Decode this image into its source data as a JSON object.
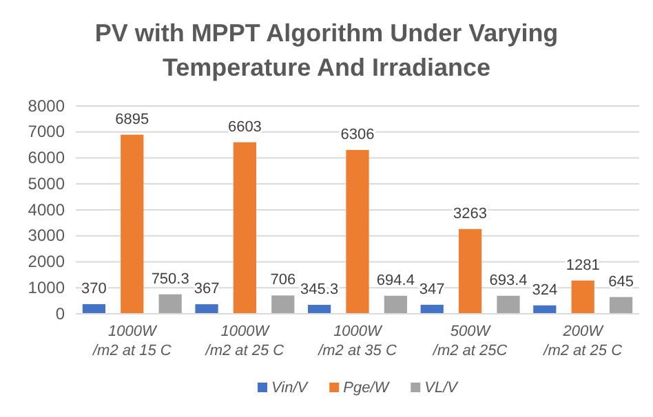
{
  "chart_data": {
    "type": "bar",
    "title": "PV with MPPT Algorithm Under Varying Temperature And Irradiance",
    "categories": [
      "1000W /m2 at 15 C",
      "1000W /m2 at 25 C",
      "1000W /m2 at 35 C",
      "500W /m2 at 25C",
      "200W /m2 at 25 C"
    ],
    "series": [
      {
        "name": "Vin/V",
        "color": "#4472c4",
        "values": [
          370,
          367,
          345.3,
          347,
          324
        ]
      },
      {
        "name": "Pge/W",
        "color": "#ed7d31",
        "values": [
          6895,
          6603,
          6306,
          3263,
          1281
        ]
      },
      {
        "name": "VL/V",
        "color": "#a5a5a5",
        "values": [
          750.3,
          706,
          694.4,
          693.4,
          645
        ]
      }
    ],
    "ylim": [
      0,
      8000
    ],
    "yticks": [
      0,
      1000,
      2000,
      3000,
      4000,
      5000,
      6000,
      7000,
      8000
    ],
    "grid": "y",
    "legend": "bottom",
    "data_labels": true
  }
}
